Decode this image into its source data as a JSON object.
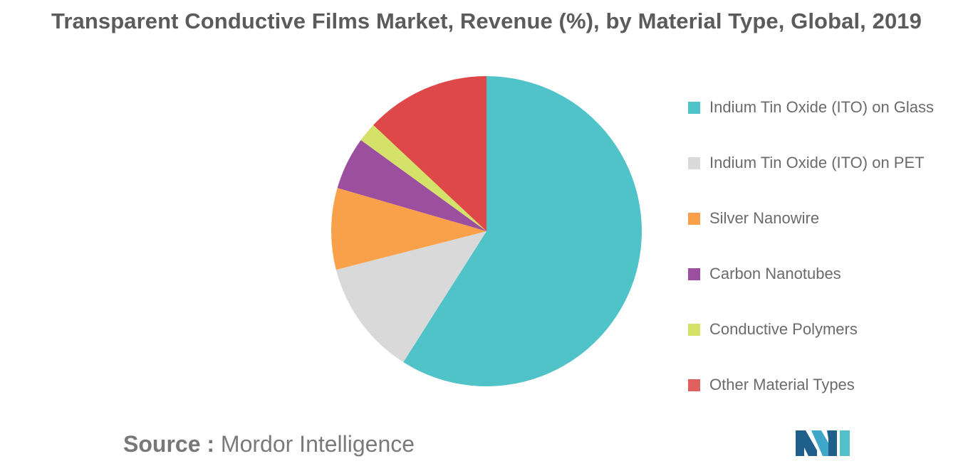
{
  "header": {
    "title": "Transparent Conductive Films Market, Revenue (%), by Material Type, Global, 2019"
  },
  "chart_data": {
    "type": "pie",
    "title": "Transparent Conductive Films Market, Revenue (%), by Material Type, Global, 2019",
    "categories": [
      "Indium Tin Oxide (ITO) on Glass",
      "Indium Tin Oxide (ITO) on PET",
      "Silver Nanowire",
      "Carbon Nanotubes",
      "Conductive Polymers",
      "Other Material Types"
    ],
    "values": [
      59,
      12,
      8.5,
      5.5,
      2,
      13
    ],
    "colors": [
      "#4fc3c8",
      "#d9d9d9",
      "#f9a14a",
      "#9b4f9e",
      "#d5e26a",
      "#de4848"
    ],
    "start_angle": "12 o'clock",
    "direction": "clockwise",
    "legend_position": "right"
  },
  "legend": {
    "items": [
      {
        "label": "Indium Tin Oxide (ITO) on Glass",
        "color": "#4fc3c8"
      },
      {
        "label": "Indium Tin Oxide (ITO) on PET",
        "color": "#d9d9d9"
      },
      {
        "label": "Silver Nanowire",
        "color": "#f9a14a"
      },
      {
        "label": "Carbon Nanotubes",
        "color": "#9b4f9e"
      },
      {
        "label": "Conductive Polymers",
        "color": "#d5e26a"
      },
      {
        "label": "Other Material Types",
        "color": "#e06060"
      }
    ]
  },
  "footer": {
    "source_prefix": "Source :",
    "source_name": "Mordor Intelligence",
    "logo_icon": "mordor-intelligence-logo"
  }
}
